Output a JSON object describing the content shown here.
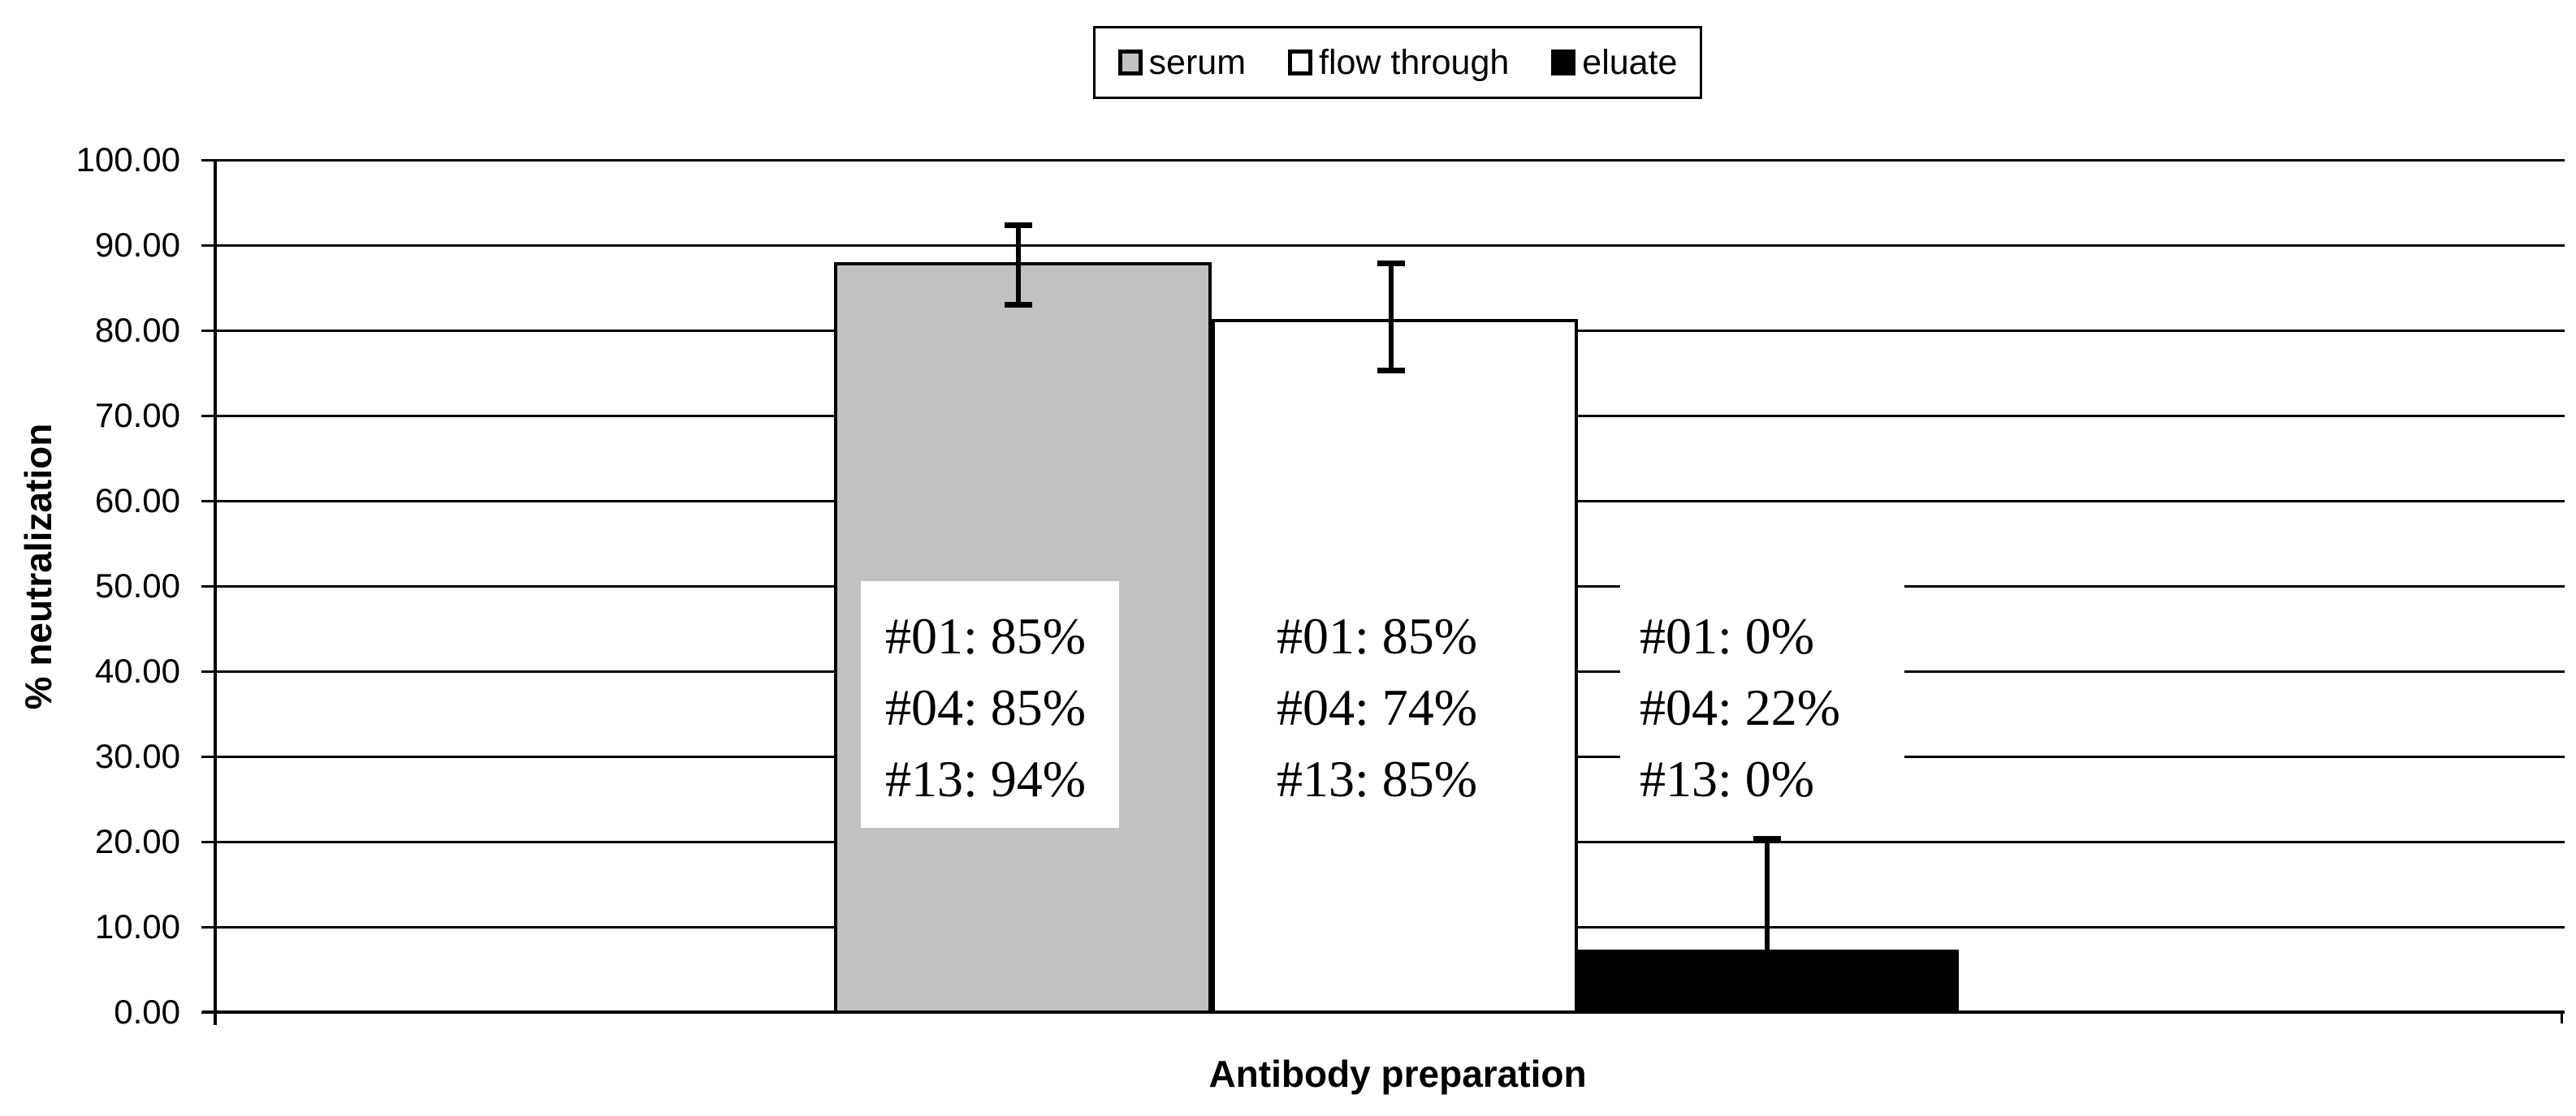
{
  "chart_data": {
    "type": "bar",
    "title": "",
    "xlabel": "Antibody preparation",
    "ylabel": "% neutralization",
    "ylim": [
      0,
      100
    ],
    "ytick_step": 10,
    "ytick_labels": [
      "0.00",
      "10.00",
      "20.00",
      "30.00",
      "40.00",
      "50.00",
      "60.00",
      "70.00",
      "80.00",
      "90.00",
      "100.00"
    ],
    "grid": "horizontal",
    "legend_position": "top-center",
    "categories": [
      "Antibody preparation"
    ],
    "series": [
      {
        "name": "serum",
        "fill": "#C1C1C3",
        "value": 88.0,
        "error_low": 83.0,
        "error_high": 92.4,
        "data_labels": [
          "#01: 85%",
          "#04: 85%",
          "#13: 94%"
        ]
      },
      {
        "name": "flow through",
        "fill": "#FFFFFF",
        "value": 81.3,
        "error_low": 75.2,
        "error_high": 87.9,
        "data_labels": [
          "#01: 85%",
          "#04: 74%",
          "#13: 85%"
        ]
      },
      {
        "name": "eluate",
        "fill": "#000000",
        "value": 7.3,
        "error_low": null,
        "error_high": 20.4,
        "data_labels": [
          "#01: 0%",
          "#04: 22%",
          "#13: 0%"
        ]
      }
    ],
    "colors": {
      "axis": "#000000",
      "grid": "#000000",
      "text": "#000000",
      "annotation_bg": "#FFFFFF"
    }
  }
}
